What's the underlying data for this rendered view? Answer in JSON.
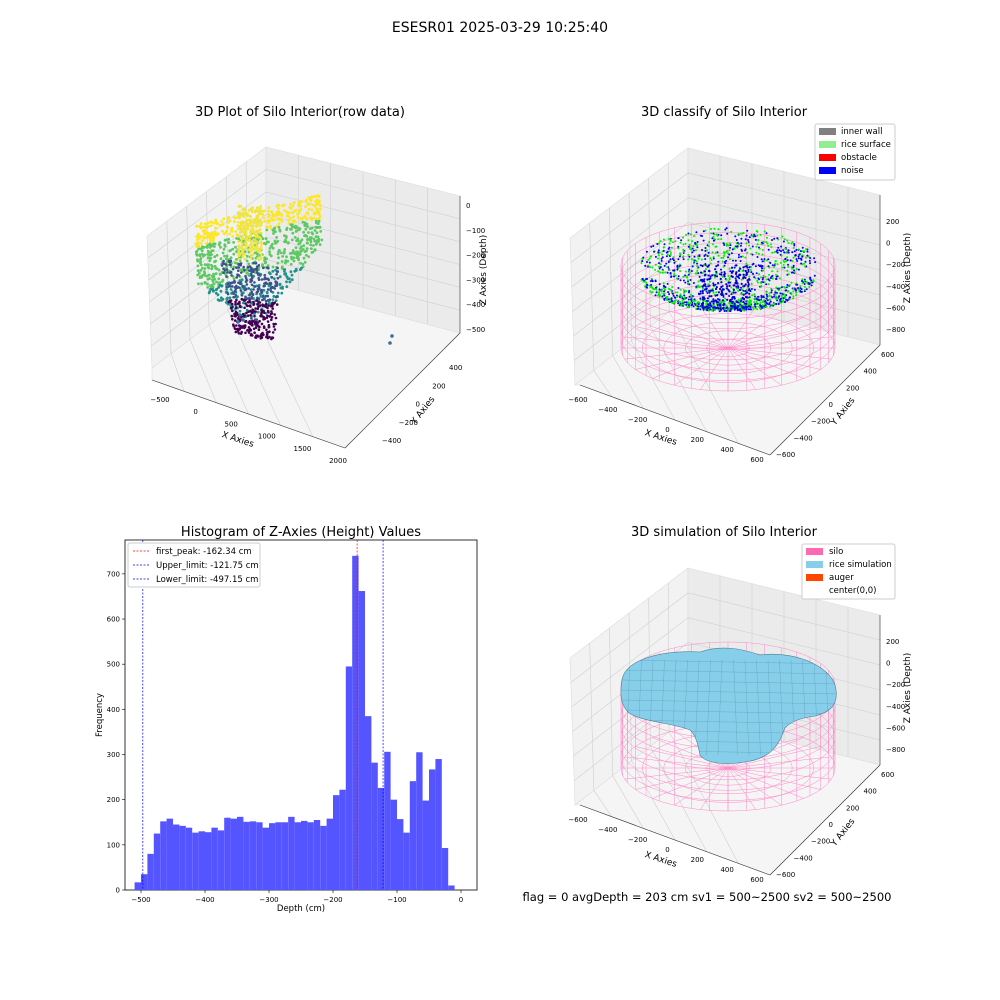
{
  "suptitle": "ESESR01 2025-03-29 10:25:40",
  "status_line": "flag = 0     avgDepth = 203 cm  sv1 = 500~2500  sv2 = 500~2500",
  "chart_data": [
    {
      "type": "scatter3d",
      "title": "3D Plot of Silo Interior(row data)",
      "xlabel": "X Axies",
      "ylabel": "Y Axies",
      "zlabel": "Z Axies (Depth)",
      "xticks": [
        "−500",
        "0",
        "500",
        "1000",
        "1500",
        "2000"
      ],
      "yticks": [
        "−400",
        "−200",
        "0",
        "200",
        "400"
      ],
      "zticks": [
        "0",
        "−100",
        "−200",
        "−300",
        "−400",
        "−500"
      ],
      "colormap": [
        "#440154",
        "#3b528b",
        "#21918c",
        "#5ec962",
        "#fde725"
      ]
    },
    {
      "type": "scatter3d",
      "title": "3D classify of Silo Interior",
      "xlabel": "X Axies",
      "ylabel": "Y Axies",
      "zlabel": "Z Axies (Depth)",
      "xticks": [
        "−600",
        "−400",
        "−200",
        "0",
        "200",
        "400",
        "600"
      ],
      "yticks": [
        "−600",
        "−400",
        "−200",
        "0",
        "200",
        "400",
        "600"
      ],
      "zticks": [
        "200",
        "0",
        "−200",
        "−400",
        "−600",
        "−800"
      ],
      "legend": [
        {
          "label": "inner wall",
          "color": "#808080"
        },
        {
          "label": "rice surface",
          "color": "#90ee90"
        },
        {
          "label": "obstacle",
          "color": "#ff0000"
        },
        {
          "label": "noise",
          "color": "#0000ff"
        }
      ]
    },
    {
      "type": "bar",
      "title": "Histogram of Z-Axies (Height) Values",
      "xlabel": "Depth (cm)",
      "ylabel": "Frequency",
      "xlim": [
        -525,
        25
      ],
      "ylim": [
        0,
        775
      ],
      "xticks": [
        -500,
        -400,
        -300,
        -200,
        -100,
        0
      ],
      "yticks": [
        0,
        100,
        200,
        300,
        400,
        500,
        600,
        700
      ],
      "bin_width": 10,
      "bins": [
        {
          "x0": -510,
          "v": 17
        },
        {
          "x0": -500,
          "v": 35
        },
        {
          "x0": -490,
          "v": 80
        },
        {
          "x0": -480,
          "v": 125
        },
        {
          "x0": -470,
          "v": 152
        },
        {
          "x0": -460,
          "v": 158
        },
        {
          "x0": -450,
          "v": 145
        },
        {
          "x0": -440,
          "v": 142
        },
        {
          "x0": -430,
          "v": 138
        },
        {
          "x0": -420,
          "v": 127
        },
        {
          "x0": -410,
          "v": 130
        },
        {
          "x0": -400,
          "v": 128
        },
        {
          "x0": -390,
          "v": 138
        },
        {
          "x0": -380,
          "v": 132
        },
        {
          "x0": -370,
          "v": 160
        },
        {
          "x0": -360,
          "v": 158
        },
        {
          "x0": -350,
          "v": 162
        },
        {
          "x0": -340,
          "v": 151
        },
        {
          "x0": -330,
          "v": 152
        },
        {
          "x0": -320,
          "v": 150
        },
        {
          "x0": -310,
          "v": 138
        },
        {
          "x0": -300,
          "v": 148
        },
        {
          "x0": -290,
          "v": 150
        },
        {
          "x0": -280,
          "v": 150
        },
        {
          "x0": -270,
          "v": 162
        },
        {
          "x0": -260,
          "v": 150
        },
        {
          "x0": -250,
          "v": 153
        },
        {
          "x0": -240,
          "v": 150
        },
        {
          "x0": -230,
          "v": 155
        },
        {
          "x0": -220,
          "v": 142
        },
        {
          "x0": -210,
          "v": 158
        },
        {
          "x0": -200,
          "v": 210
        },
        {
          "x0": -190,
          "v": 222
        },
        {
          "x0": -180,
          "v": 495
        },
        {
          "x0": -170,
          "v": 740
        },
        {
          "x0": -160,
          "v": 662
        },
        {
          "x0": -150,
          "v": 385
        },
        {
          "x0": -140,
          "v": 282
        },
        {
          "x0": -130,
          "v": 226
        },
        {
          "x0": -120,
          "v": 306
        },
        {
          "x0": -110,
          "v": 200
        },
        {
          "x0": -100,
          "v": 157
        },
        {
          "x0": -90,
          "v": 127
        },
        {
          "x0": -80,
          "v": 241
        },
        {
          "x0": -70,
          "v": 305
        },
        {
          "x0": -60,
          "v": 198
        },
        {
          "x0": -50,
          "v": 267
        },
        {
          "x0": -40,
          "v": 290
        },
        {
          "x0": -30,
          "v": 93
        },
        {
          "x0": -20,
          "v": 10
        }
      ],
      "vlines": [
        {
          "x": -162.34,
          "color": "#ff0000",
          "label": "first_peak: -162.34 cm"
        },
        {
          "x": -121.75,
          "color": "#0000ff",
          "label": "Upper_limit: -121.75 cm"
        },
        {
          "x": -497.15,
          "color": "#0000ff",
          "label": "Lower_limit: -497.15 cm"
        }
      ],
      "bar_color": "#5555ff"
    },
    {
      "type": "surface3d",
      "title": "3D simulation of Silo Interior",
      "xlabel": "X Axies",
      "ylabel": "Y Axies",
      "zlabel": "Z Axies (Depth)",
      "xticks": [
        "−600",
        "−400",
        "−200",
        "0",
        "200",
        "400",
        "600"
      ],
      "yticks": [
        "−600",
        "−400",
        "−200",
        "0",
        "200",
        "400",
        "600"
      ],
      "zticks": [
        "200",
        "0",
        "−200",
        "−400",
        "−600",
        "−800"
      ],
      "legend": [
        {
          "label": "silo",
          "color": "#ff69b4"
        },
        {
          "label": "rice simulation",
          "color": "#87ceeb"
        },
        {
          "label": "auger",
          "color": "#ff4500"
        },
        {
          "label": "center(0,0)",
          "color": "#ffffff"
        }
      ]
    }
  ]
}
